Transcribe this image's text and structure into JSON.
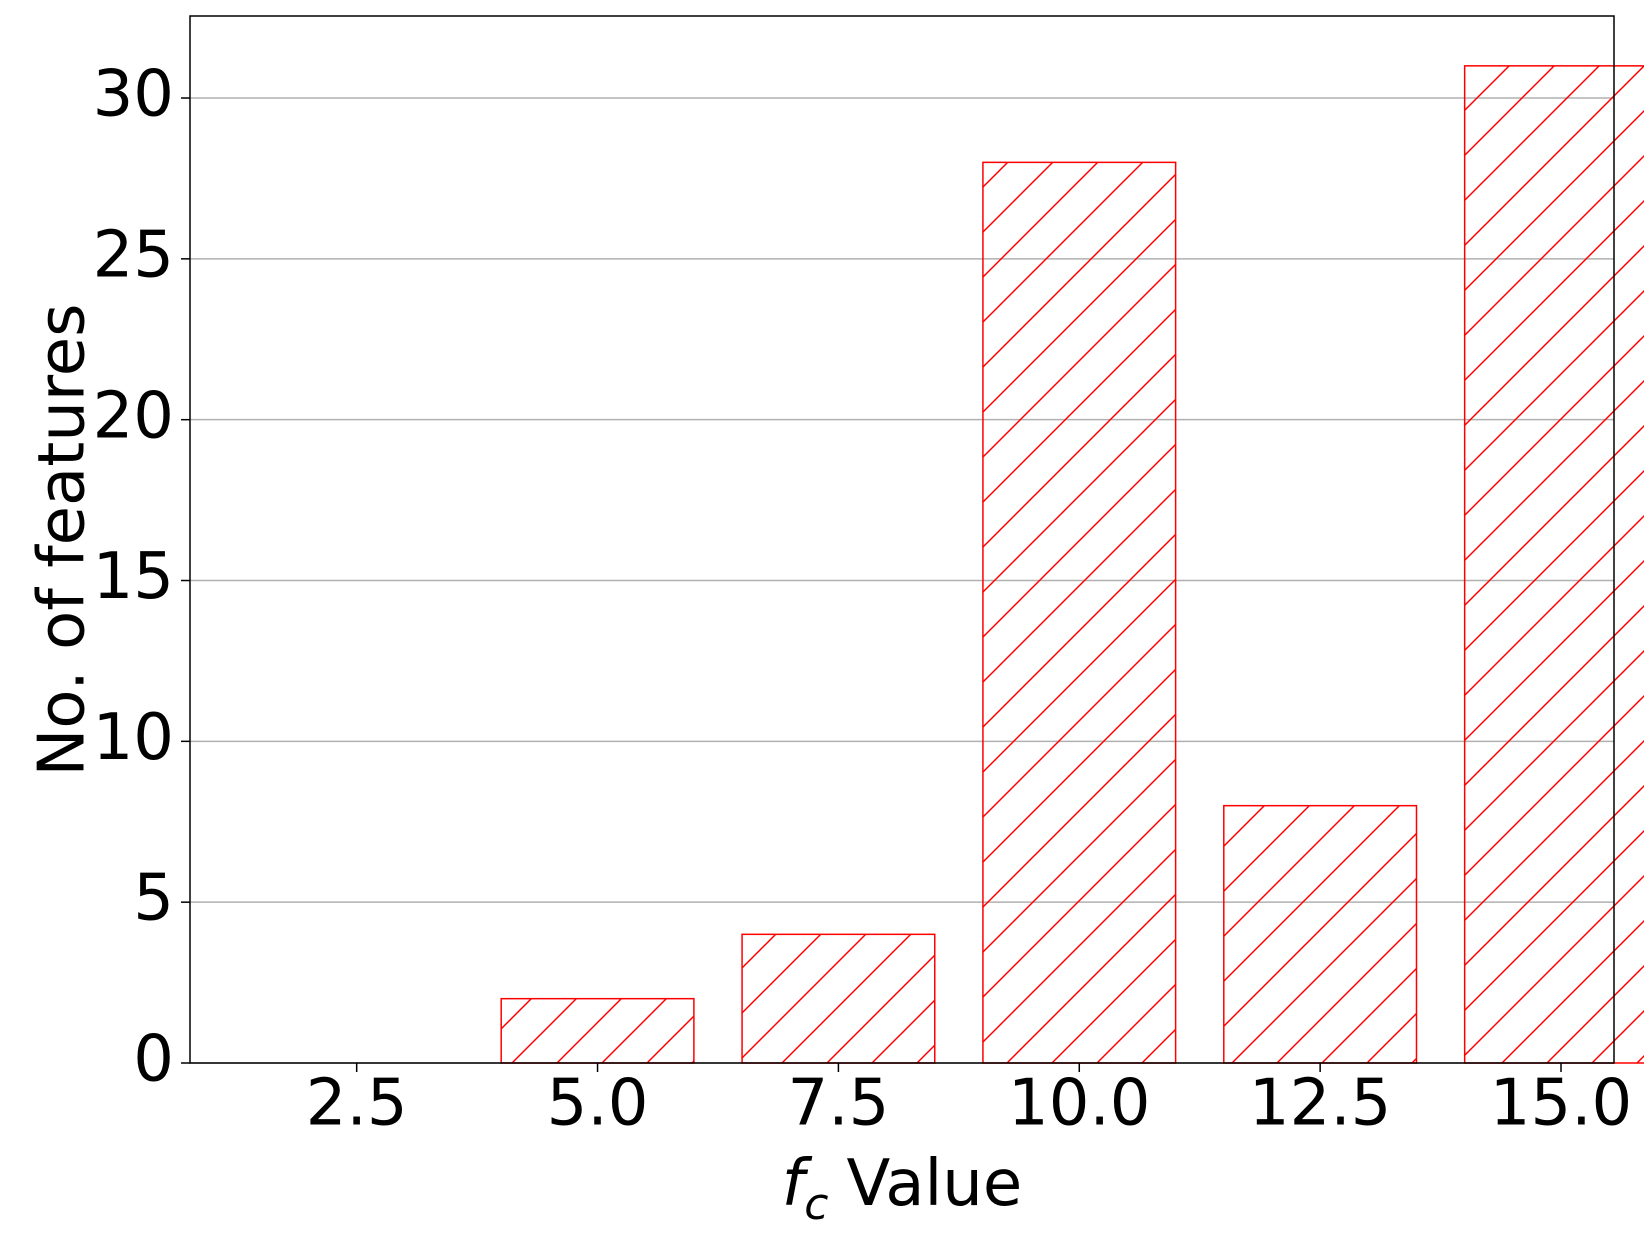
{
  "chart_data": {
    "type": "bar",
    "ylabel": "No. of features",
    "xlabel": {
      "symbol": "f",
      "subscript": "c",
      "text": "Value"
    },
    "x": [
      2.5,
      5.0,
      7.5,
      10.0,
      12.5,
      15.0
    ],
    "values": [
      0,
      2,
      4,
      28,
      8,
      31
    ],
    "bar_width": 2,
    "color": "#ff0000",
    "hatch": "/",
    "xlim": [
      0.77,
      15.55
    ],
    "xticks": [
      {
        "value": 2.5,
        "label": "2.5"
      },
      {
        "value": 5,
        "label": "5.0"
      },
      {
        "value": 7.5,
        "label": "7.5"
      },
      {
        "value": 10,
        "label": "10.0"
      },
      {
        "value": 12.5,
        "label": "12.5"
      },
      {
        "value": 15,
        "label": "15.0"
      }
    ],
    "ylim": [
      0,
      32.55
    ],
    "yticks": [
      0,
      5,
      10,
      15,
      20,
      25,
      30
    ],
    "grid": true
  }
}
